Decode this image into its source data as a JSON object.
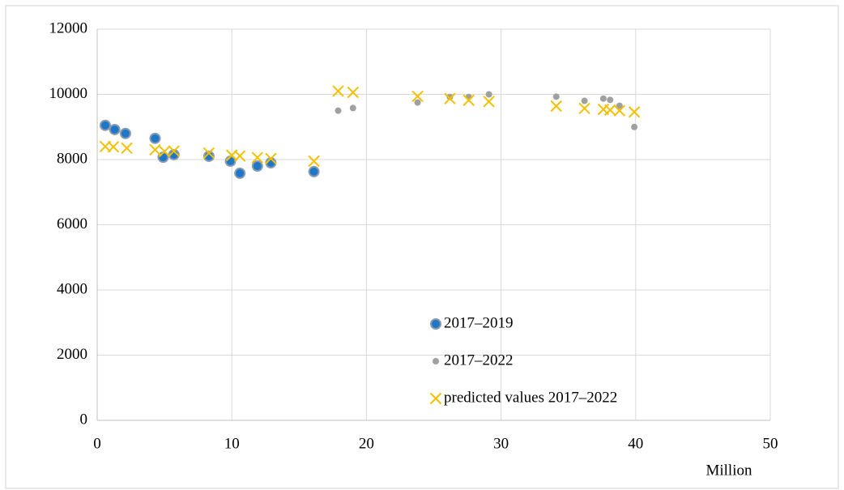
{
  "chart_data": {
    "type": "scatter",
    "x_label": "Million",
    "xlim": [
      0,
      50
    ],
    "xticks": [
      0,
      10,
      20,
      30,
      40,
      50
    ],
    "ylim": [
      0,
      12000
    ],
    "yticks": [
      0,
      2000,
      4000,
      6000,
      8000,
      10000,
      12000
    ],
    "grid": true,
    "series": [
      {
        "name": "2017–2019",
        "color": "#1f77c9",
        "marker": "circle-large",
        "x": [
          0.6,
          1.3,
          2.1,
          4.3,
          4.9,
          5.7,
          8.3,
          9.9,
          10.6,
          11.9,
          12.9,
          16.1
        ],
        "values": [
          9050,
          8920,
          8800,
          8650,
          8070,
          8150,
          8100,
          7950,
          7580,
          7800,
          7900,
          7630
        ]
      },
      {
        "name": "2017–2022",
        "color": "#a0a0a0",
        "marker": "circle-small",
        "x": [
          17.9,
          19.0,
          23.8,
          26.2,
          27.6,
          29.1,
          34.1,
          36.2,
          37.6,
          38.1,
          38.8,
          39.9
        ],
        "values": [
          9500,
          9580,
          9750,
          9920,
          9920,
          10000,
          9930,
          9800,
          9870,
          9830,
          9650,
          9000
        ]
      },
      {
        "name": "predicted values 2017–2022",
        "color": "#f5c000",
        "marker": "x",
        "x": [
          0.6,
          1.2,
          2.2,
          4.3,
          5.0,
          5.7,
          8.3,
          10.0,
          10.6,
          11.9,
          12.9,
          16.1,
          17.9,
          19.0,
          23.8,
          26.2,
          27.6,
          29.1,
          34.1,
          36.2,
          37.6,
          38.1,
          38.8,
          39.9
        ],
        "values": [
          8400,
          8390,
          8350,
          8300,
          8250,
          8260,
          8200,
          8130,
          8110,
          8060,
          8030,
          7950,
          10100,
          10060,
          9940,
          9870,
          9820,
          9780,
          9640,
          9570,
          9540,
          9520,
          9500,
          9460
        ]
      }
    ]
  }
}
